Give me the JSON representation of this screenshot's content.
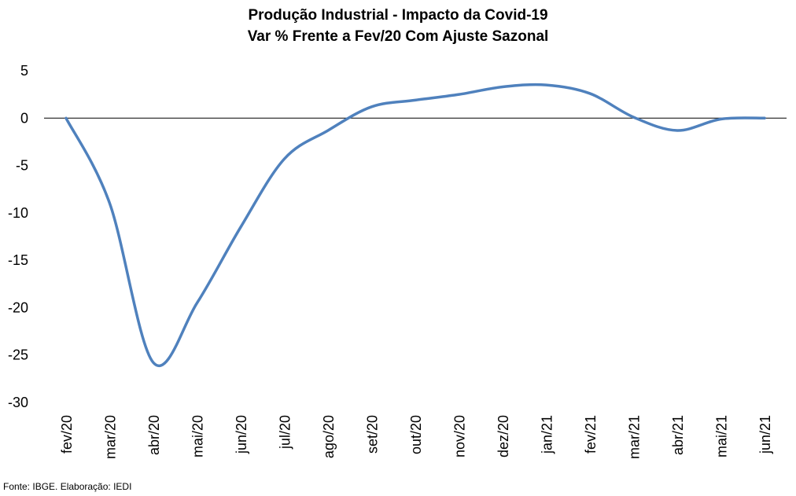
{
  "chart_data": {
    "type": "line",
    "title": "Produção Industrial - Impacto da Covid-19",
    "subtitle": "Var % Frente a Fev/20 Com Ajuste Sazonal",
    "xlabel": "",
    "ylabel": "",
    "categories": [
      "fev/20",
      "mar/20",
      "abr/20",
      "mai/20",
      "jun/20",
      "jul/20",
      "ago/20",
      "set/20",
      "out/20",
      "nov/20",
      "dez/20",
      "jan/21",
      "fev/21",
      "mar/21",
      "abr/21",
      "mai/21",
      "jun/21"
    ],
    "series": [
      {
        "values": [
          0,
          -9.0,
          -25.8,
          -19.5,
          -11.5,
          -4.3,
          -1.3,
          1.2,
          1.9,
          2.5,
          3.3,
          3.5,
          2.6,
          0.1,
          -1.3,
          -0.1,
          0.0
        ]
      }
    ],
    "ylim": [
      -30,
      5
    ],
    "yticks": [
      5,
      0,
      -5,
      -10,
      -15,
      -20,
      -25,
      -30
    ],
    "grid": false,
    "legend": "none",
    "colors": {
      "line": "#4F81BD",
      "axis": "#000000"
    }
  },
  "footer": {
    "source": "Fonte: IBGE. Elaboração: IEDI"
  }
}
